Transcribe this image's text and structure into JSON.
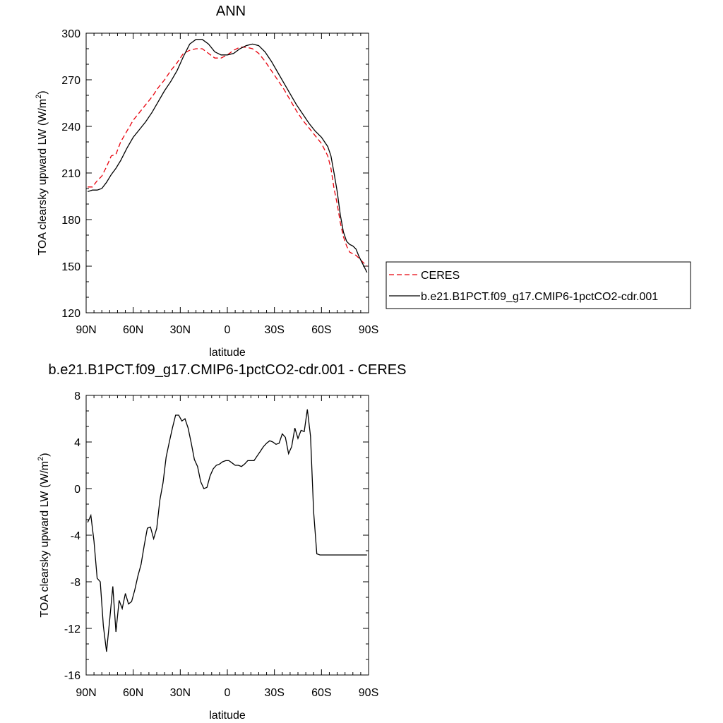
{
  "chart_data": [
    {
      "type": "line",
      "title": "ANN",
      "xlabel": "latitude",
      "ylabel_main": "TOA clearsky upward LW (W/m",
      "ylabel_sup": "2",
      "ylabel_tail": ")",
      "xlim": [
        90,
        -90
      ],
      "ylim": [
        120,
        300
      ],
      "x_ticks": [
        90,
        60,
        30,
        0,
        -30,
        -60,
        -90
      ],
      "x_tick_labels": [
        "90N",
        "60N",
        "30N",
        "0",
        "30S",
        "60S",
        "90S"
      ],
      "y_ticks": [
        120,
        150,
        180,
        210,
        240,
        270,
        300
      ],
      "y_tick_labels": [
        "120",
        "150",
        "180",
        "210",
        "240",
        "270",
        "300"
      ],
      "grid": false,
      "legend_position": "right",
      "series": [
        {
          "name": "CERES",
          "color": "#e8000b",
          "style": "dashed",
          "x": [
            89,
            86,
            83,
            80,
            77,
            74,
            71,
            68,
            64,
            60,
            56,
            52,
            48,
            44,
            40,
            36,
            32,
            28,
            24,
            20,
            16,
            12,
            8,
            4,
            0,
            -4,
            -8,
            -12,
            -16,
            -20,
            -24,
            -28,
            -32,
            -36,
            -40,
            -44,
            -48,
            -52,
            -56,
            -60,
            -64,
            -66,
            -68,
            -70,
            -72,
            -74,
            -76,
            -78,
            -80,
            -82,
            -84,
            -86,
            -88,
            -89
          ],
          "y": [
            201,
            201,
            205,
            208,
            214,
            221,
            222,
            230,
            237,
            244,
            249,
            254,
            259,
            265,
            270,
            276,
            281,
            287,
            289,
            290,
            290,
            287,
            284,
            284,
            286,
            289,
            291,
            291,
            290,
            287,
            282,
            276,
            270,
            264,
            257,
            250,
            244,
            239,
            234,
            229,
            221,
            213,
            200,
            190,
            178,
            169,
            163,
            159,
            158,
            157,
            155,
            153,
            151,
            150
          ]
        },
        {
          "name": "b.e21.B1PCT.f09_g17.CMIP6-1pctCO2-cdr.001",
          "color": "#000000",
          "style": "solid",
          "x": [
            89,
            86,
            83,
            80,
            77,
            74,
            71,
            68,
            64,
            60,
            56,
            52,
            48,
            44,
            40,
            36,
            32,
            28,
            24,
            20,
            16,
            12,
            8,
            4,
            0,
            -4,
            -8,
            -12,
            -16,
            -20,
            -24,
            -28,
            -32,
            -36,
            -40,
            -44,
            -48,
            -52,
            -56,
            -60,
            -64,
            -66,
            -68,
            -70,
            -72,
            -74,
            -76,
            -78,
            -80,
            -82,
            -84,
            -86,
            -88,
            -89
          ],
          "y": [
            198,
            199,
            199,
            200,
            204,
            209,
            213,
            218,
            226,
            233,
            238,
            243,
            249,
            256,
            263,
            269,
            276,
            285,
            293,
            296,
            296,
            293,
            288,
            286,
            286,
            287,
            290,
            292,
            293,
            292,
            288,
            282,
            275,
            268,
            261,
            254,
            248,
            242,
            237,
            233,
            227,
            221,
            210,
            198,
            183,
            172,
            166,
            164,
            163,
            161,
            156,
            152,
            148,
            146
          ]
        }
      ]
    },
    {
      "type": "line",
      "title": "b.e21.B1PCT.f09_g17.CMIP6-1pctCO2-cdr.001 - CERES",
      "xlabel": "latitude",
      "ylabel_main": "TOA clearsky upward LW (W/m",
      "ylabel_sup": "2",
      "ylabel_tail": ")",
      "xlim": [
        90,
        -90
      ],
      "ylim": [
        -16,
        8
      ],
      "x_ticks": [
        90,
        60,
        30,
        0,
        -30,
        -60,
        -90
      ],
      "x_tick_labels": [
        "90N",
        "60N",
        "30N",
        "0",
        "30S",
        "60S",
        "90S"
      ],
      "y_ticks": [
        -16,
        -12,
        -8,
        -4,
        0,
        4,
        8
      ],
      "y_tick_labels": [
        "-16",
        "-12",
        "-8",
        "-4",
        "0",
        "4",
        "8"
      ],
      "grid": false,
      "series": [
        {
          "color": "#000000",
          "style": "solid",
          "x": [
            89,
            87,
            85,
            83,
            81,
            79,
            77,
            75,
            73,
            71,
            69,
            67,
            65,
            63,
            61,
            59,
            57,
            55,
            53,
            51,
            49,
            47,
            45,
            43,
            41,
            39,
            37,
            35,
            33,
            31,
            29,
            27,
            25,
            23,
            21,
            19,
            17,
            15,
            13,
            11,
            9,
            7,
            5,
            3,
            1,
            -1,
            -3,
            -5,
            -7,
            -9,
            -11,
            -13,
            -15,
            -17,
            -19,
            -21,
            -23,
            -25,
            -27,
            -29,
            -31,
            -33,
            -35,
            -37,
            -39,
            -41,
            -43,
            -45,
            -47,
            -49,
            -51,
            -53,
            -55,
            -57,
            -59,
            -61,
            -63,
            -65,
            -67,
            -69,
            -71,
            -73,
            -75,
            -77,
            -79,
            -81,
            -83,
            -85,
            -87,
            -89
          ],
          "y": [
            -2.9,
            -2.3,
            -4.5,
            -7.7,
            -8.0,
            -11.8,
            -14.0,
            -11.3,
            -8.4,
            -12.3,
            -9.6,
            -10.3,
            -9.0,
            -9.9,
            -9.7,
            -8.7,
            -7.5,
            -6.5,
            -4.9,
            -3.4,
            -3.3,
            -4.3,
            -3.4,
            -1.0,
            0.5,
            2.7,
            4.0,
            5.2,
            6.3,
            6.3,
            5.8,
            6.0,
            5.2,
            3.9,
            2.5,
            1.9,
            0.6,
            0.0,
            0.1,
            1.1,
            1.7,
            2.0,
            2.1,
            2.3,
            2.4,
            2.4,
            2.2,
            2.0,
            2.0,
            1.9,
            2.1,
            2.4,
            2.4,
            2.4,
            2.8,
            3.2,
            3.6,
            3.9,
            4.1,
            4.0,
            3.8,
            3.9,
            4.7,
            4.4,
            3.0,
            3.6,
            5.2,
            4.3,
            5.0,
            4.9,
            6.8,
            4.5,
            -2.0,
            -5.6,
            -5.7,
            -5.7,
            -5.7,
            -5.7,
            -5.7,
            -5.7,
            -5.7,
            -5.7,
            -5.7,
            -5.7,
            -5.7,
            -5.7,
            -5.7,
            -5.7,
            -5.7,
            -5.7
          ]
        }
      ]
    }
  ]
}
